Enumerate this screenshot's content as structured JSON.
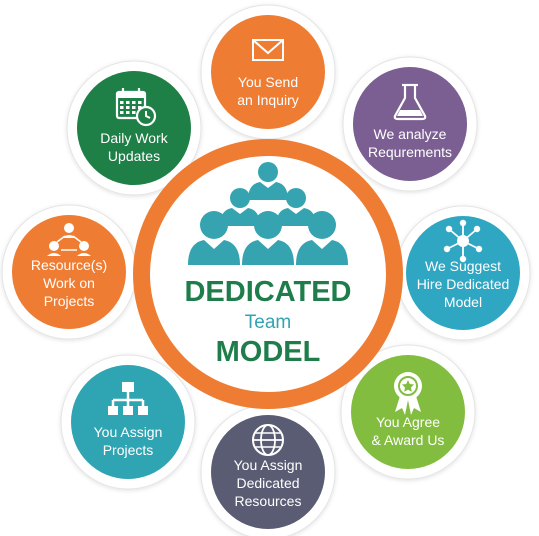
{
  "center": {
    "line1": "DEDICATED",
    "line2": "Team",
    "line3": "MODEL",
    "colors": {
      "ring": "#EE7D33",
      "dark_green": "#1E7D4A",
      "teal": "#2FA4B2",
      "people": "#35A4B0"
    }
  },
  "steps": [
    {
      "id": "send-inquiry",
      "icon": "envelope-icon",
      "color": "#EE7D33",
      "lines": [
        "You Send",
        "an Inquiry"
      ]
    },
    {
      "id": "analyze",
      "icon": "flask-icon",
      "color": "#7B5F92",
      "lines": [
        "We analyze",
        "Requrements"
      ]
    },
    {
      "id": "suggest",
      "icon": "network-icon",
      "color": "#2FA6C2",
      "lines": [
        "We Suggest",
        "Hire Dedicated",
        "Model"
      ]
    },
    {
      "id": "agree",
      "icon": "award-ribbon-icon",
      "color": "#83BD3F",
      "lines": [
        "You Agree",
        "& Award Us"
      ]
    },
    {
      "id": "assign-resources",
      "icon": "globe-icon",
      "color": "#5A5C73",
      "lines": [
        "You Assign",
        "Dedicated",
        "Resources"
      ]
    },
    {
      "id": "assign-projects",
      "icon": "hierarchy-icon",
      "color": "#2FA4B2",
      "lines": [
        "You Assign",
        "Projects"
      ]
    },
    {
      "id": "work-on-projects",
      "icon": "team-connect-icon",
      "color": "#EE7D33",
      "lines": [
        "Resource(s)",
        "Work on",
        "Projects"
      ]
    },
    {
      "id": "daily-updates",
      "icon": "calendar-clock-icon",
      "color": "#1E8047",
      "lines": [
        "Daily Work",
        "Updates"
      ]
    }
  ]
}
